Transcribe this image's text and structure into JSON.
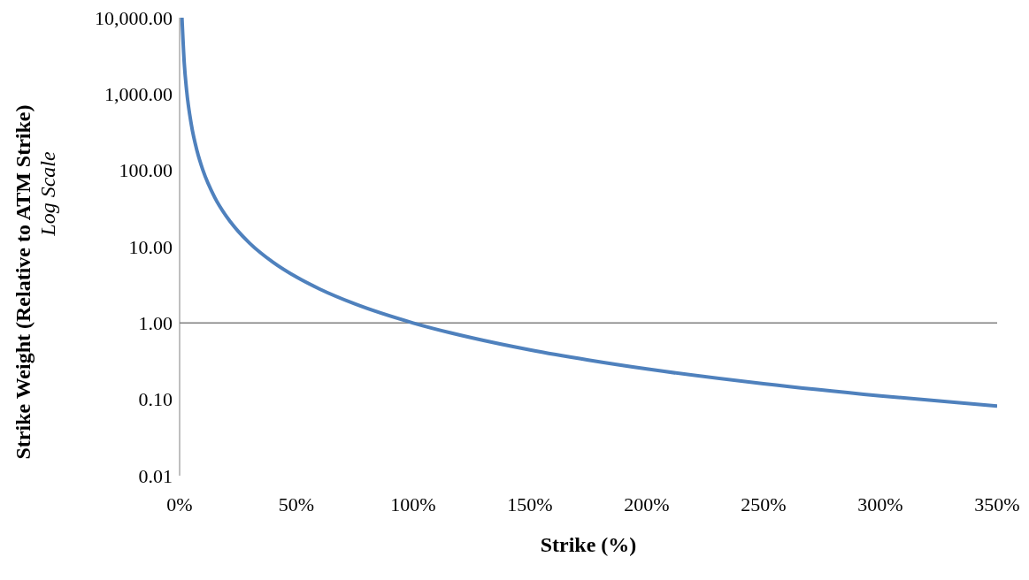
{
  "chart_data": {
    "type": "line",
    "xlabel": "Strike (%)",
    "ylabel": "Strike Weight (Relative to ATM Strike)",
    "annotations": [
      "Log Scale"
    ],
    "x": [
      1,
      2,
      3,
      5,
      7.5,
      10,
      15,
      20,
      25,
      30,
      40,
      50,
      60,
      75,
      100,
      125,
      150,
      175,
      200,
      250,
      300,
      350
    ],
    "series": [
      {
        "color": "#4f81bd",
        "values": [
          10000,
          2500,
          1111,
          400,
          178,
          100,
          44.4,
          25,
          16,
          11.1,
          6.25,
          4,
          2.78,
          1.78,
          1,
          0.64,
          0.444,
          0.327,
          0.25,
          0.16,
          0.111,
          0.0816
        ]
      }
    ],
    "log": "y",
    "grid": false,
    "legend": false,
    "marker": "none",
    "line_style": "solid",
    "xlim": [
      0,
      350
    ],
    "xticks": [
      {
        "value": 0,
        "label": "0%"
      },
      {
        "value": 50,
        "label": "50%"
      },
      {
        "value": 100,
        "label": "100%"
      },
      {
        "value": 150,
        "label": "150%"
      },
      {
        "value": 200,
        "label": "200%"
      },
      {
        "value": 250,
        "label": "250%"
      },
      {
        "value": 300,
        "label": "300%"
      },
      {
        "value": 350,
        "label": "350%"
      }
    ],
    "ylim": [
      0.01,
      10000
    ],
    "yticks": [
      {
        "value": 0.01,
        "label": "0.01"
      },
      {
        "value": 0.1,
        "label": "0.10"
      },
      {
        "value": 1,
        "label": "1.00"
      },
      {
        "value": 10,
        "label": "10.00"
      },
      {
        "value": 100,
        "label": "100.00"
      },
      {
        "value": 1000,
        "label": "1,000.00"
      },
      {
        "value": 10000,
        "label": "10,000.00"
      }
    ],
    "ref_lines": [
      {
        "axis": "y",
        "value": 1,
        "color": "#808080"
      }
    ]
  }
}
